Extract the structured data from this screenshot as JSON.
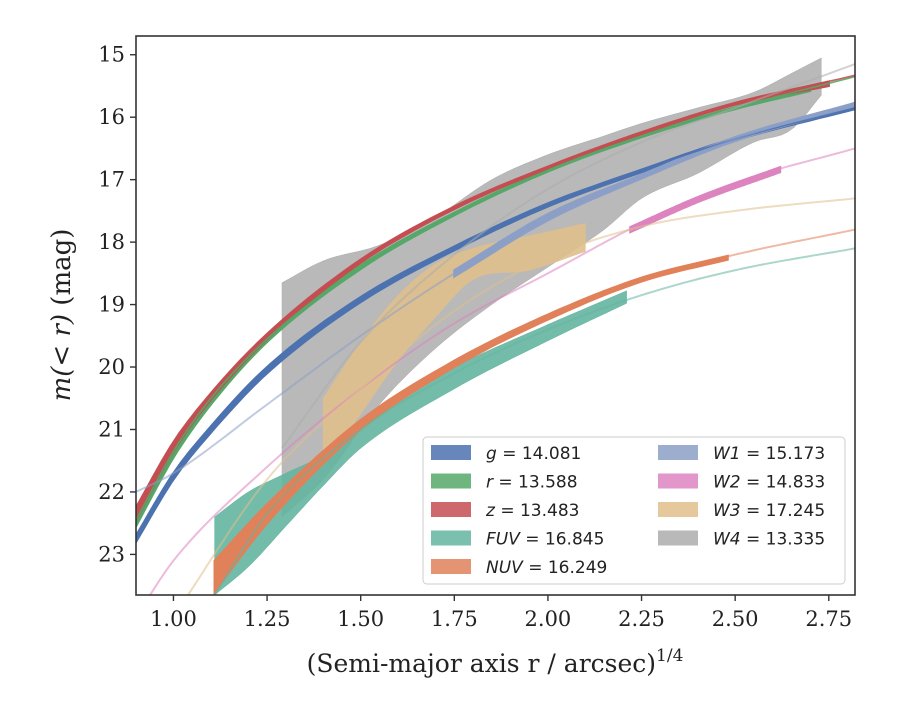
{
  "chart_data": {
    "type": "line",
    "title": "",
    "xlabel": "(Semi-major axis r / arcsec)",
    "xlabel_sup": "1/4",
    "ylabel_pre": "m(< r)",
    "ylabel_post": " (mag)",
    "xlim": [
      0.9,
      2.82
    ],
    "ylim": [
      23.65,
      14.7
    ],
    "y_inverted": true,
    "xticks": [
      1.0,
      1.25,
      1.5,
      1.75,
      2.0,
      2.25,
      2.5,
      2.75
    ],
    "xtick_labels": [
      "1.00",
      "1.25",
      "1.50",
      "1.75",
      "2.00",
      "2.25",
      "2.50",
      "2.75"
    ],
    "yticks": [
      15,
      16,
      17,
      18,
      19,
      20,
      21,
      22,
      23
    ],
    "ytick_labels": [
      "15",
      "16",
      "17",
      "18",
      "19",
      "20",
      "21",
      "22",
      "23"
    ],
    "grid": false,
    "legend_position": "lower-right",
    "legend_columns": 2,
    "series": [
      {
        "name": "g",
        "value": "14.081",
        "color": "#4c72b0",
        "fit": [
          [
            0.9,
            22.8
          ],
          [
            1.0,
            21.75
          ],
          [
            1.1,
            20.95
          ],
          [
            1.25,
            20.0
          ],
          [
            1.5,
            18.9
          ],
          [
            1.75,
            18.1
          ],
          [
            2.0,
            17.4
          ],
          [
            2.25,
            16.85
          ],
          [
            2.5,
            16.35
          ],
          [
            2.82,
            15.85
          ]
        ],
        "fit_range": [
          0.9,
          2.82
        ],
        "band": [
          [
            0.9,
            22.7,
            22.8
          ],
          [
            1.0,
            21.7,
            21.8
          ],
          [
            1.1,
            20.95,
            21.05
          ],
          [
            1.25,
            20.0,
            20.1
          ],
          [
            1.5,
            18.88,
            18.96
          ],
          [
            1.75,
            18.07,
            18.13
          ],
          [
            2.0,
            17.38,
            17.43
          ],
          [
            2.25,
            16.84,
            16.88
          ],
          [
            2.5,
            16.33,
            16.37
          ],
          [
            2.82,
            15.83,
            15.87
          ]
        ]
      },
      {
        "name": "r",
        "value": "13.588",
        "color": "#55a868",
        "fit": [
          [
            0.9,
            22.45
          ],
          [
            1.0,
            21.35
          ],
          [
            1.1,
            20.5
          ],
          [
            1.25,
            19.55
          ],
          [
            1.5,
            18.4
          ],
          [
            1.75,
            17.55
          ],
          [
            2.0,
            16.85
          ],
          [
            2.25,
            16.3
          ],
          [
            2.5,
            15.85
          ],
          [
            2.82,
            15.35
          ]
        ],
        "fit_range": [
          0.9,
          2.82
        ],
        "band": [
          [
            0.9,
            22.3,
            22.55
          ],
          [
            1.0,
            21.3,
            21.45
          ],
          [
            1.1,
            20.45,
            20.6
          ],
          [
            1.25,
            19.5,
            19.6
          ],
          [
            1.5,
            18.37,
            18.43
          ],
          [
            1.75,
            17.53,
            17.57
          ],
          [
            2.0,
            16.84,
            16.87
          ],
          [
            2.25,
            16.29,
            16.32
          ],
          [
            2.5,
            15.84,
            15.87
          ],
          [
            2.7,
            15.55,
            15.58
          ]
        ]
      },
      {
        "name": "z",
        "value": "13.483",
        "color": "#c44e52",
        "fit": [
          [
            0.9,
            22.3
          ],
          [
            1.0,
            21.25
          ],
          [
            1.1,
            20.45
          ],
          [
            1.25,
            19.5
          ],
          [
            1.5,
            18.3
          ],
          [
            1.75,
            17.45
          ],
          [
            2.0,
            16.8
          ],
          [
            2.25,
            16.25
          ],
          [
            2.5,
            15.78
          ],
          [
            2.82,
            15.33
          ]
        ],
        "fit_range": [
          0.9,
          2.82
        ],
        "band": [
          [
            0.9,
            22.25,
            22.45
          ],
          [
            1.0,
            21.2,
            21.35
          ],
          [
            1.1,
            20.42,
            20.52
          ],
          [
            1.25,
            19.47,
            19.55
          ],
          [
            1.5,
            18.28,
            18.33
          ],
          [
            1.75,
            17.43,
            17.47
          ],
          [
            2.0,
            16.79,
            16.82
          ],
          [
            2.25,
            16.24,
            16.27
          ],
          [
            2.5,
            15.77,
            15.8
          ],
          [
            2.75,
            15.43,
            15.5
          ]
        ]
      },
      {
        "name": "FUV",
        "value": "16.845",
        "color": "#64b5a0",
        "fit": [
          [
            1.11,
            23.65
          ],
          [
            1.25,
            22.35
          ],
          [
            1.5,
            21.0
          ],
          [
            1.75,
            20.1
          ],
          [
            2.0,
            19.4
          ],
          [
            2.25,
            18.85
          ],
          [
            2.5,
            18.45
          ],
          [
            2.82,
            18.1
          ]
        ],
        "fit_range": [
          1.11,
          2.82
        ],
        "band": [
          [
            1.11,
            22.4,
            23.65
          ],
          [
            1.2,
            22.0,
            23.2
          ],
          [
            1.3,
            21.7,
            22.55
          ],
          [
            1.4,
            21.4,
            21.9
          ],
          [
            1.5,
            20.85,
            21.3
          ],
          [
            1.75,
            20.0,
            20.35
          ],
          [
            2.0,
            19.32,
            19.58
          ],
          [
            2.21,
            18.78,
            18.98
          ]
        ]
      },
      {
        "name": "NUV",
        "value": "16.249",
        "color": "#e1815a",
        "fit": [
          [
            1.0,
            24.5
          ],
          [
            1.1,
            23.4
          ],
          [
            1.25,
            22.3
          ],
          [
            1.5,
            20.9
          ],
          [
            1.75,
            19.95
          ],
          [
            2.0,
            19.2
          ],
          [
            2.25,
            18.6
          ],
          [
            2.5,
            18.2
          ],
          [
            2.82,
            17.8
          ]
        ],
        "fit_range": [
          1.11,
          2.82
        ],
        "band": [
          [
            1.11,
            23.1,
            23.6
          ],
          [
            1.25,
            22.2,
            22.5
          ],
          [
            1.5,
            20.85,
            21.0
          ],
          [
            1.75,
            19.9,
            20.0
          ],
          [
            2.0,
            19.16,
            19.24
          ],
          [
            2.25,
            18.57,
            18.63
          ],
          [
            2.48,
            18.22,
            18.28
          ]
        ]
      },
      {
        "name": "W1",
        "value": "15.173",
        "color": "#8c9fc6",
        "fit": [
          [
            0.9,
            22.0
          ],
          [
            1.0,
            21.7
          ],
          [
            1.25,
            20.6
          ],
          [
            1.5,
            19.5
          ],
          [
            1.75,
            18.5
          ],
          [
            2.0,
            17.6
          ],
          [
            2.25,
            16.95
          ],
          [
            2.5,
            16.35
          ],
          [
            2.82,
            15.8
          ]
        ],
        "fit_range": [
          0.9,
          2.82
        ],
        "band": [
          [
            1.75,
            18.45,
            18.55
          ],
          [
            2.0,
            17.55,
            17.65
          ],
          [
            2.25,
            16.92,
            16.98
          ],
          [
            2.5,
            16.32,
            16.38
          ],
          [
            2.82,
            15.77,
            15.83
          ]
        ]
      },
      {
        "name": "W2",
        "value": "14.833",
        "color": "#dd84bf",
        "fit": [
          [
            0.9,
            24.0
          ],
          [
            1.0,
            23.1
          ],
          [
            1.25,
            21.6
          ],
          [
            1.5,
            20.35
          ],
          [
            1.75,
            19.3
          ],
          [
            2.0,
            18.5
          ],
          [
            2.25,
            17.7
          ],
          [
            2.5,
            17.05
          ],
          [
            2.82,
            16.5
          ]
        ],
        "fit_range": [
          0.9,
          2.82
        ],
        "band": [
          [
            2.22,
            17.76,
            17.84
          ],
          [
            2.4,
            17.28,
            17.36
          ],
          [
            2.62,
            16.8,
            16.88
          ]
        ]
      },
      {
        "name": "W3",
        "value": "17.245",
        "color": "#e0c08c",
        "fit": [
          [
            1.0,
            24.0
          ],
          [
            1.25,
            21.8
          ],
          [
            1.5,
            20.35
          ],
          [
            1.75,
            19.1
          ],
          [
            2.0,
            18.25
          ],
          [
            2.25,
            17.75
          ],
          [
            2.5,
            17.5
          ],
          [
            2.82,
            17.3
          ]
        ],
        "fit_range": [
          0.95,
          2.82
        ],
        "band": [
          [
            1.4,
            20.5,
            21.6
          ],
          [
            1.5,
            19.6,
            20.75
          ],
          [
            1.6,
            18.85,
            19.9
          ],
          [
            1.7,
            18.35,
            19.2
          ],
          [
            1.8,
            18.1,
            18.6
          ],
          [
            1.95,
            17.9,
            18.45
          ],
          [
            2.1,
            17.7,
            18.15
          ]
        ]
      },
      {
        "name": "W4",
        "value": "13.335",
        "color": "#adadad",
        "fit": [
          [
            1.29,
            21.3
          ],
          [
            1.5,
            19.6
          ],
          [
            1.75,
            18.2
          ],
          [
            2.0,
            17.15
          ],
          [
            2.25,
            16.4
          ],
          [
            2.5,
            15.85
          ],
          [
            2.82,
            15.15
          ]
        ],
        "fit_range": [
          1.29,
          2.82
        ],
        "band": [
          [
            1.29,
            18.65,
            22.4
          ],
          [
            1.4,
            18.3,
            21.8
          ],
          [
            1.55,
            18.05,
            20.6
          ],
          [
            1.7,
            17.6,
            19.7
          ],
          [
            1.85,
            17.0,
            19.0
          ],
          [
            2.0,
            16.6,
            18.4
          ],
          [
            2.15,
            16.3,
            17.8
          ],
          [
            2.25,
            16.1,
            17.3
          ],
          [
            2.4,
            15.85,
            16.9
          ],
          [
            2.55,
            15.6,
            16.4
          ],
          [
            2.65,
            15.3,
            16.2
          ],
          [
            2.73,
            15.05,
            15.65
          ]
        ]
      }
    ]
  }
}
